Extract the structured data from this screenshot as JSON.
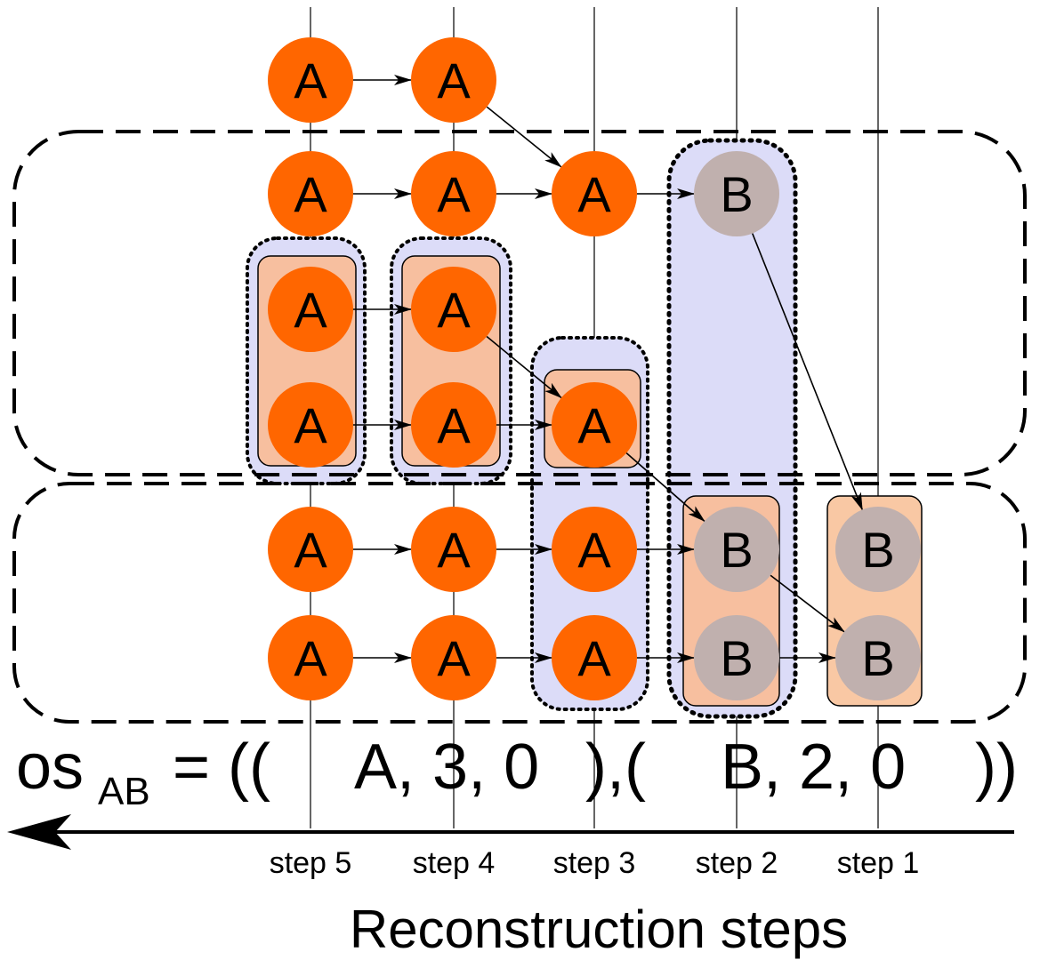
{
  "colors": {
    "node_a": "#ff6600",
    "node_b": "#c0b0ae",
    "group_fill": "#f7bf9f",
    "highlight_fill": "#dcdcf8",
    "line": "#000000"
  },
  "formula": {
    "prefix": "os",
    "subscript": "AB",
    "equals": "= ((",
    "first_tuple": "A, 3, 0",
    "separator": "),(",
    "second_tuple": "B, 2, 0",
    "suffix": "))"
  },
  "steps": [
    "step 5",
    "step 4",
    "step 3",
    "step 2",
    "step 1"
  ],
  "axis_title": "Reconstruction steps",
  "rows": [
    {
      "nodes": [
        "A",
        "A",
        "",
        "",
        ""
      ]
    },
    {
      "nodes": [
        "A",
        "A",
        "A",
        "B",
        ""
      ]
    },
    {
      "nodes": [
        "A",
        "A",
        "",
        "",
        ""
      ]
    },
    {
      "nodes": [
        "A",
        "A",
        "A",
        "",
        ""
      ]
    },
    {
      "nodes": [
        "A",
        "A",
        "A",
        "B",
        "B"
      ]
    },
    {
      "nodes": [
        "A",
        "A",
        "A",
        "B",
        "B"
      ]
    }
  ]
}
